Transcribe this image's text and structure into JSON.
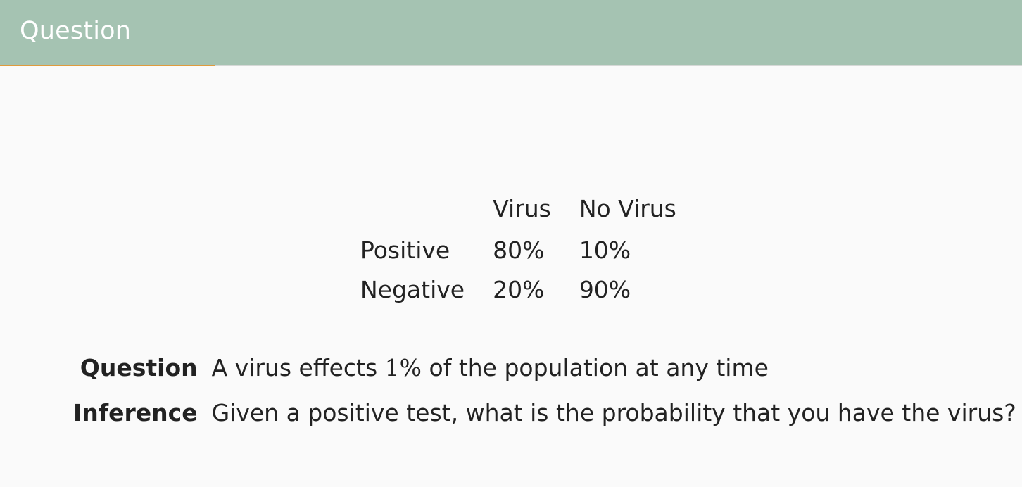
{
  "frame": {
    "title": "Question",
    "header_bg": "#a5c3b2",
    "accent": "#e09b3d",
    "progress": 0.21
  },
  "table": {
    "columns": [
      "",
      "Virus",
      "No Virus"
    ],
    "rows": [
      {
        "label": "Positive",
        "virus": "80%",
        "no_virus": "10%"
      },
      {
        "label": "Negative",
        "virus": "20%",
        "no_virus": "90%"
      }
    ]
  },
  "question": {
    "term": "Question",
    "text_before": "A virus effects",
    "math": "1%",
    "text_after": "of the population at any time"
  },
  "inference": {
    "term": "Inference",
    "text": "Given a positive test, what is the probability that you have the virus?"
  }
}
